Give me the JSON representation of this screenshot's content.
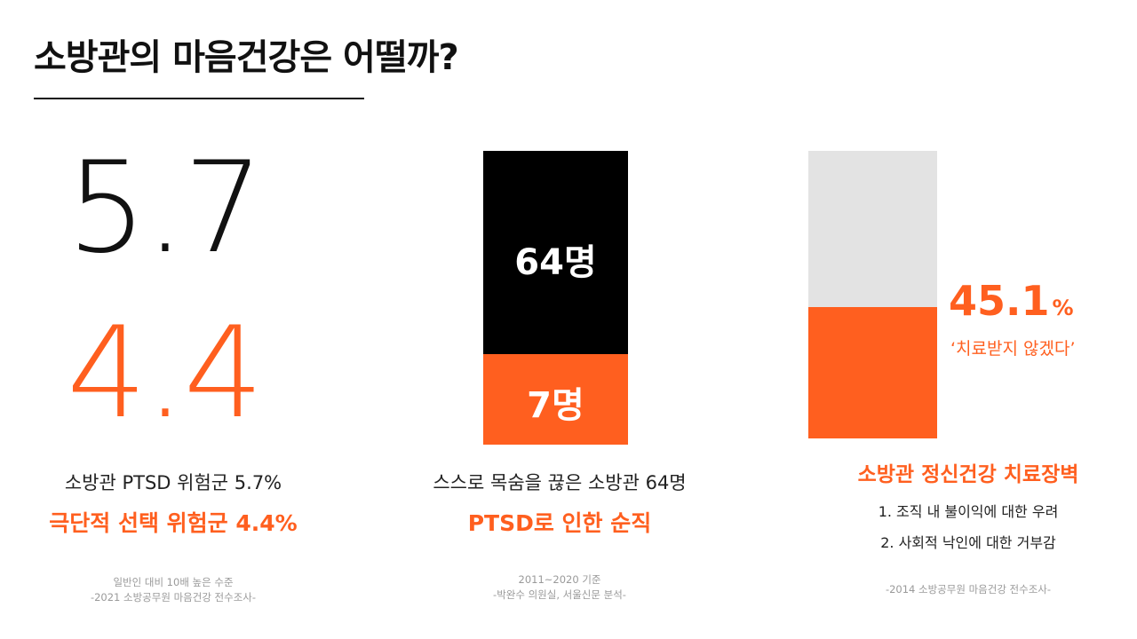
{
  "title": "소방관의 마음건강은 어떨까?",
  "colors": {
    "accent": "#ff5f1f",
    "dark": "#000000",
    "light_bar": "#e3e3e3",
    "note_gray": "#9a9a9a"
  },
  "left": {
    "big_value_1": "5.7",
    "big_value_2": "4.4",
    "subtitle": "소방관 PTSD 위험군 5.7%",
    "highlight": "극단적 선택 위험군 4.4%",
    "note_line1": "일반인 대비 10배 높은 수준",
    "note_line2": "-2021 소방공무원 마음건강 전수조사-"
  },
  "middle": {
    "bar": {
      "total": 64,
      "part": 7
    },
    "bar_top_label": "64명",
    "bar_bottom_label": "7명",
    "subtitle": "스스로 목숨을 끊은 소방관 64명",
    "highlight": "PTSD로 인한 순직",
    "note_line1": "2011~2020 기준",
    "note_line2": "-박완수 의원실, 서울신문 분석-"
  },
  "right": {
    "bar": {
      "fill_percent": 45.1
    },
    "percent_value": "45.1",
    "percent_unit": "%",
    "percent_caption": "‘치료받지 않겠다’",
    "highlight": "소방관 정신건강 치료장벽",
    "list": [
      "1. 조직 내 불이익에 대한 우려",
      "2. 사회적 낙인에 대한 거부감"
    ],
    "note": "-2014 소방공무원 마음건강 전수조사-"
  }
}
